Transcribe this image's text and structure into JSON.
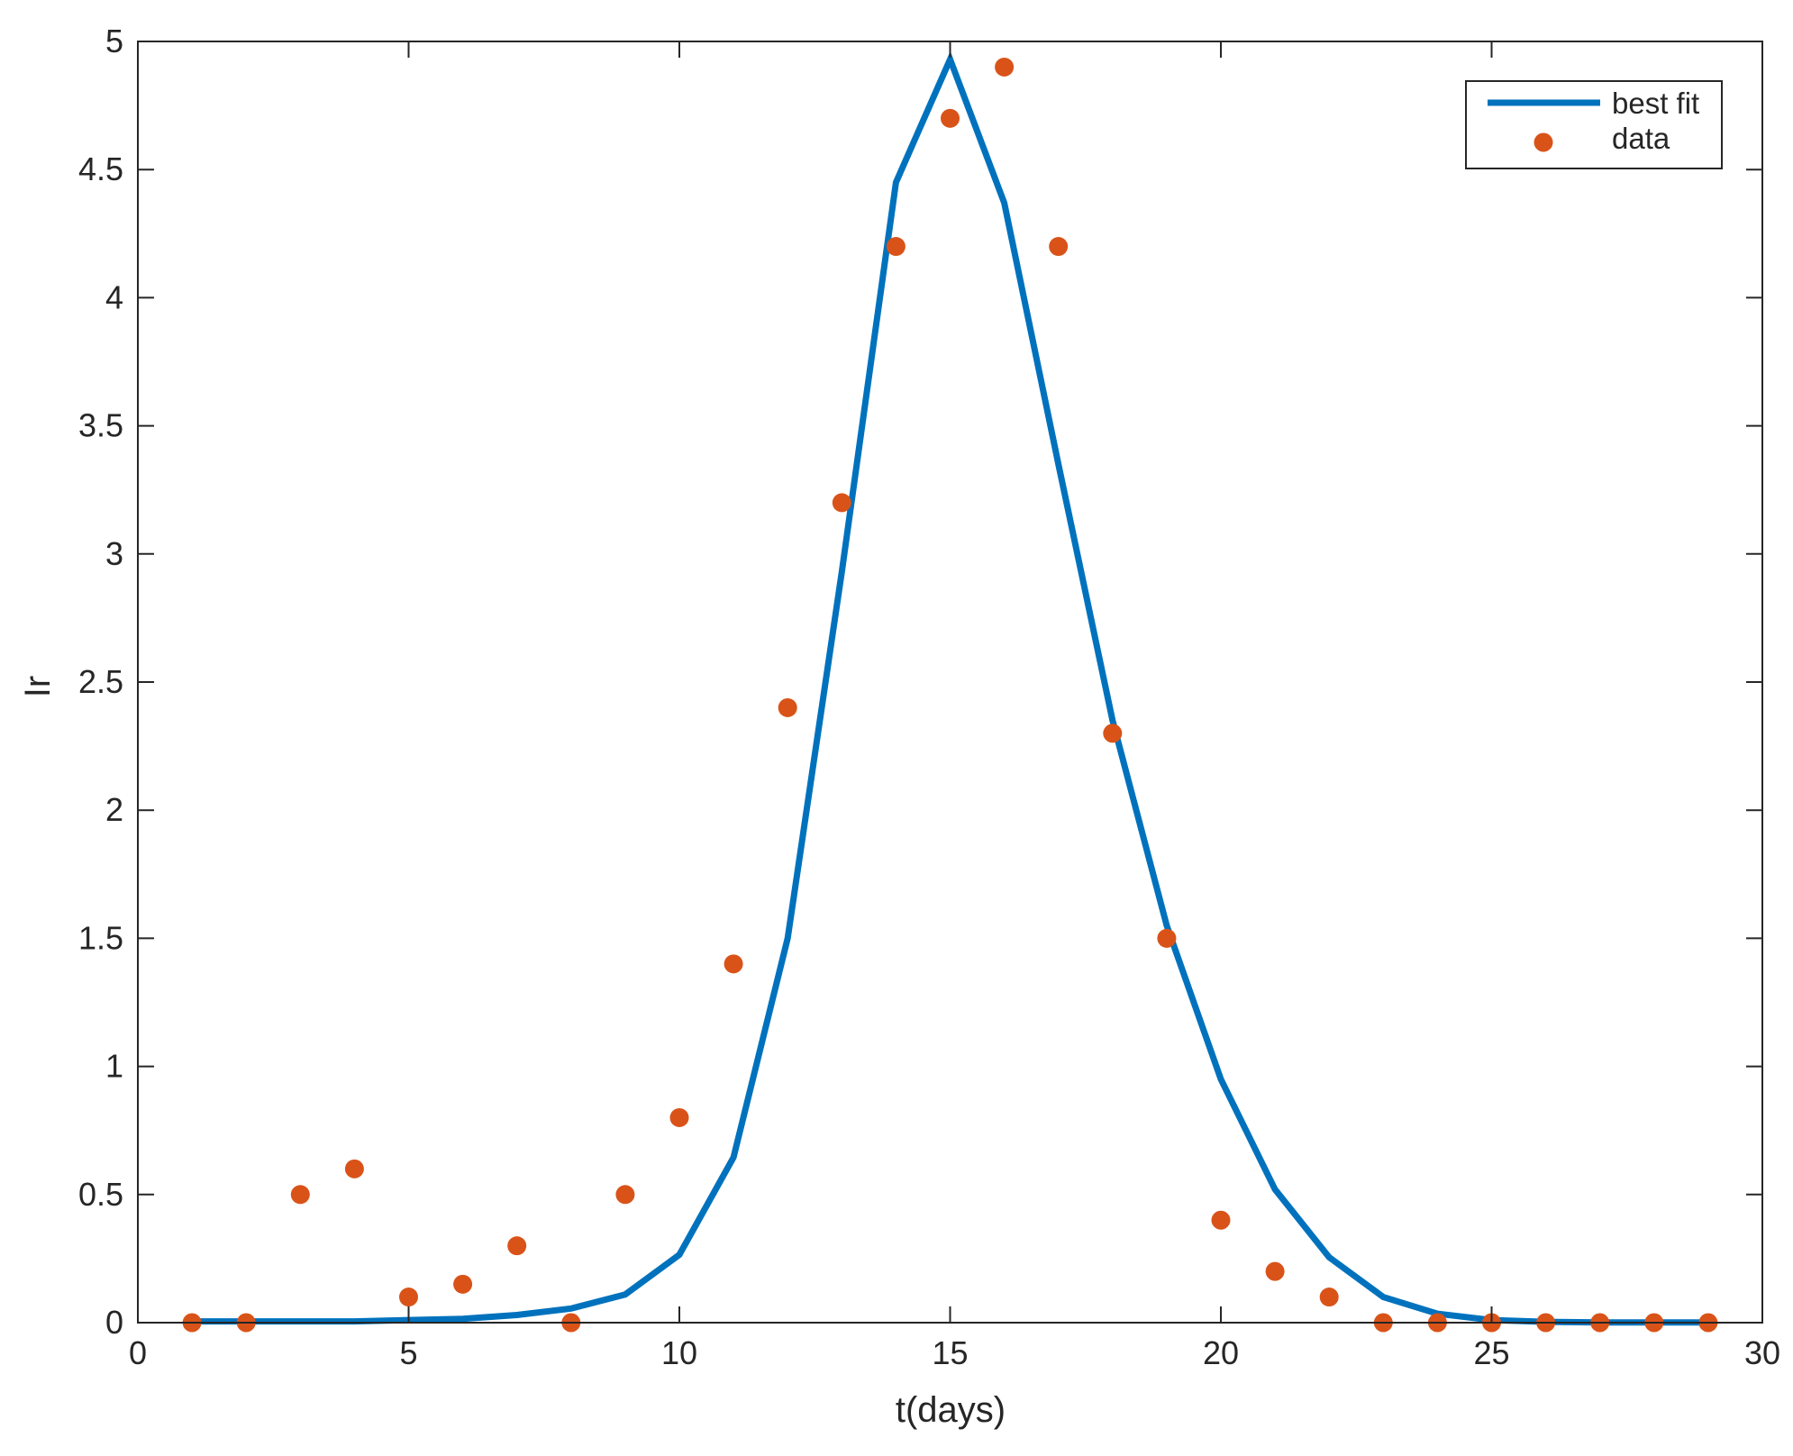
{
  "chart_data": {
    "type": "line",
    "title": "",
    "xlabel": "t(days)",
    "ylabel": "Ir",
    "xlim": [
      0,
      30
    ],
    "ylim": [
      0,
      5
    ],
    "xticks": [
      0,
      5,
      10,
      15,
      20,
      25,
      30
    ],
    "yticks": [
      0,
      0.5,
      1,
      1.5,
      2,
      2.5,
      3,
      3.5,
      4,
      4.5,
      5
    ],
    "xtick_labels": [
      "0",
      "5",
      "10",
      "15",
      "20",
      "25",
      "30"
    ],
    "ytick_labels": [
      "0",
      "0.5",
      "1",
      "1.5",
      "2",
      "2.5",
      "3",
      "3.5",
      "4",
      "4.5",
      "5"
    ],
    "grid": false,
    "legend_position": "top-right",
    "series": [
      {
        "name": "best fit",
        "type": "line",
        "color": "#0072BD",
        "x": [
          1,
          2,
          3,
          4,
          5,
          6,
          7,
          8,
          9,
          10,
          11,
          12,
          13,
          14,
          15,
          16,
          17,
          18,
          19,
          20,
          21,
          22,
          23,
          24,
          25,
          26,
          27,
          28,
          29
        ],
        "y": [
          0.005,
          0.005,
          0.005,
          0.005,
          0.01,
          0.015,
          0.03,
          0.055,
          0.11,
          0.265,
          0.645,
          1.5,
          2.93,
          4.45,
          4.93,
          4.37,
          3.35,
          2.35,
          1.55,
          0.95,
          0.52,
          0.255,
          0.1,
          0.035,
          0.01,
          0.003,
          0.001,
          0.001,
          0.001
        ]
      },
      {
        "name": "data",
        "type": "scatter",
        "color": "#D95319",
        "x": [
          1,
          2,
          3,
          4,
          5,
          6,
          7,
          8,
          9,
          10,
          11,
          12,
          13,
          14,
          15,
          16,
          17,
          18,
          19,
          20,
          21,
          22,
          23,
          24,
          25,
          26,
          27,
          28,
          29
        ],
        "y": [
          0,
          0,
          0.5,
          0.6,
          0.1,
          0.15,
          0.3,
          0,
          0.5,
          0.8,
          1.4,
          2.4,
          3.2,
          4.2,
          4.7,
          4.9,
          4.2,
          2.3,
          1.5,
          0.4,
          0.2,
          0.1,
          0,
          0,
          0,
          0,
          0,
          0,
          0
        ]
      }
    ]
  }
}
